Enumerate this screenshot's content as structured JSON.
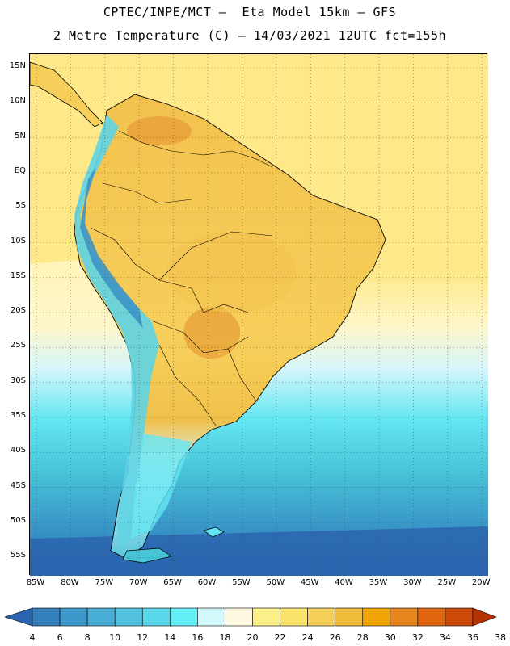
{
  "header": {
    "title_line1": "CPTEC/INPE/MCT –  Eta Model 15km – GFS",
    "title_line2": "2 Metre Temperature (C) – 14/03/2021 12UTC fct=155h"
  },
  "map": {
    "lat_labels": [
      "15N",
      "10N",
      "5N",
      "EQ",
      "5S",
      "10S",
      "15S",
      "20S",
      "25S",
      "30S",
      "35S",
      "40S",
      "45S",
      "50S",
      "55S"
    ],
    "lon_labels": [
      "85W",
      "80W",
      "75W",
      "70W",
      "65W",
      "60W",
      "55W",
      "50W",
      "45W",
      "40W",
      "35W",
      "30W",
      "25W",
      "20W"
    ],
    "grid_lines": "dotted",
    "colors": {
      "ocean_north": "#fde98a",
      "ocean_mid": "#fef6c8",
      "land_main": "#f6cf5a",
      "land_hot": "#e9a23a",
      "andes_cold": "#5fd4e6",
      "andes_peak": "#3a8fc4",
      "south_cold": "#48c4d8",
      "south_deep": "#2f7fbf",
      "coastline": "#000000"
    }
  },
  "colorbar": {
    "levels": [
      "4",
      "6",
      "8",
      "10",
      "12",
      "14",
      "16",
      "18",
      "20",
      "22",
      "24",
      "26",
      "28",
      "30",
      "32",
      "34",
      "36",
      "38"
    ],
    "colors": [
      "#2a64ae",
      "#3480bd",
      "#3d98cb",
      "#48aed6",
      "#52c2e0",
      "#58d6ea",
      "#64eef6",
      "#d2f8fb",
      "#fef8e0",
      "#fdf08a",
      "#fbe36a",
      "#f6cf58",
      "#f0bd3a",
      "#f2a406",
      "#e8861e",
      "#e0650e",
      "#cf4a08",
      "#b53204"
    ]
  }
}
